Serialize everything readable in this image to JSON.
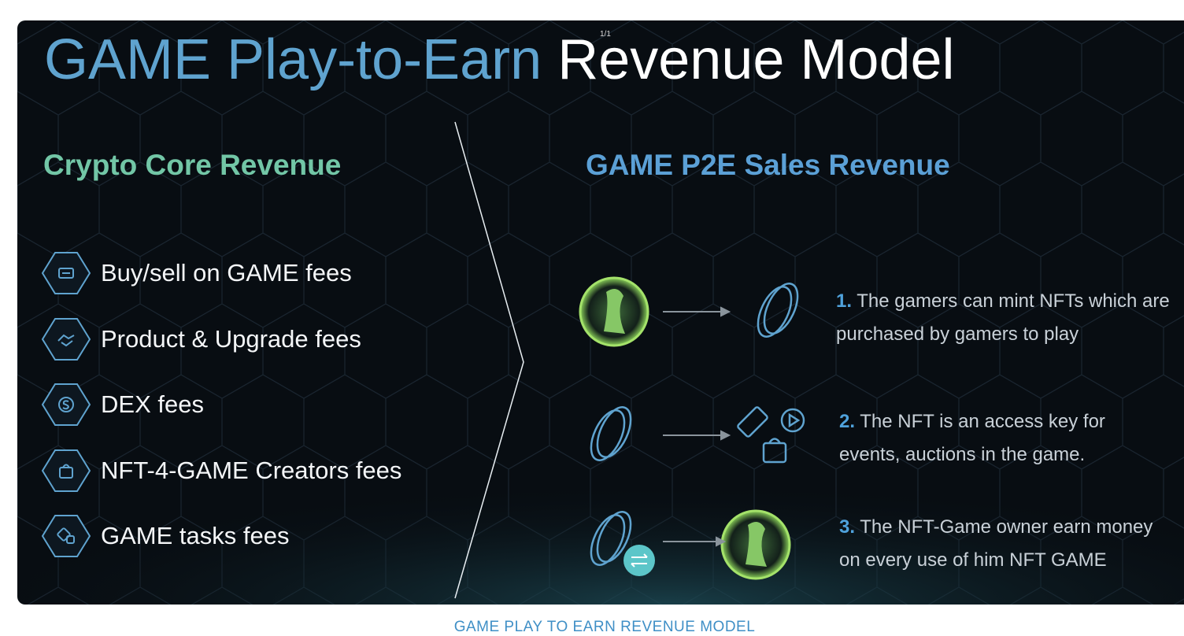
{
  "title": {
    "highlight": "GAME Play-to-Earn",
    "rest": "Revenue Model"
  },
  "page_indicator": "1/1",
  "left": {
    "heading": "Crypto Core Revenue",
    "items": [
      "Buy/sell on GAME fees",
      "Product & Upgrade fees",
      "DEX fees",
      "NFT-4-GAME Creators fees",
      "GAME tasks fees"
    ]
  },
  "right": {
    "heading": "GAME P2E Sales Revenue",
    "steps": [
      {
        "number": "1.",
        "text": "The gamers can mint NFTs which are purchased by gamers to play"
      },
      {
        "number": "2.",
        "text": "The NFT is an access key for events, auctions in the game."
      },
      {
        "number": "3.",
        "text": "The NFT-Game owner earn money on every use of him NFT GAME"
      }
    ]
  },
  "caption": "GAME PLAY TO EARN REVENUE MODEL"
}
